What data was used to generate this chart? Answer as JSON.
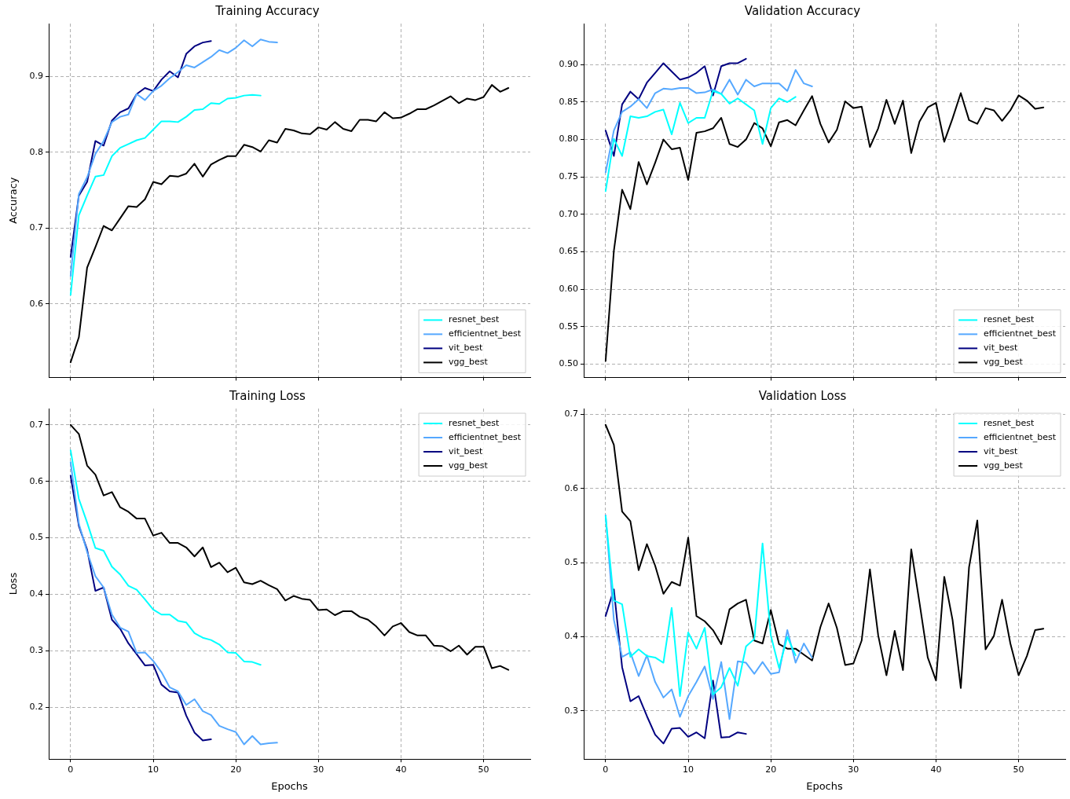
{
  "chart_data": [
    {
      "type": "line",
      "title": "Training Accuracy",
      "ylabel": "Accuracy",
      "x": [
        0,
        1,
        2,
        3,
        4,
        5,
        6,
        7,
        8,
        9,
        10,
        11,
        12,
        13,
        14,
        15,
        16,
        17,
        18,
        19,
        20,
        21,
        22,
        23,
        24,
        25,
        26,
        27,
        28,
        29,
        30,
        31,
        32,
        33,
        34,
        35,
        36,
        37,
        38,
        39,
        40,
        41,
        42,
        43,
        44,
        45,
        46,
        47,
        48,
        49,
        50,
        51,
        52,
        53
      ],
      "xlim": [
        -2.65,
        55.65
      ],
      "xticks": [
        0,
        10,
        20,
        30,
        40,
        50
      ],
      "ylim": [
        0.503,
        0.97
      ],
      "yticks": [
        0.6,
        0.7,
        0.8,
        0.9
      ],
      "grid": true,
      "legend": "bottom right",
      "marker": "none",
      "line_style": "solid",
      "tick_labels": "y",
      "series": [
        {
          "name": "resnet_best",
          "color": "#00ffff",
          "values": [
            0.612,
            0.717,
            0.743,
            0.768,
            0.77,
            0.795,
            0.806,
            0.811,
            0.816,
            0.819,
            0.83,
            0.841,
            0.841,
            0.84,
            0.847,
            0.856,
            0.857,
            0.865,
            0.864,
            0.871,
            0.872,
            0.875,
            0.876,
            0.875,
            null,
            null,
            null,
            null,
            null,
            null,
            null,
            null,
            null,
            null,
            null,
            null,
            null,
            null,
            null,
            null,
            null,
            null,
            null,
            null,
            null,
            null,
            null,
            null,
            null,
            null,
            null,
            null,
            null,
            null
          ]
        },
        {
          "name": "efficientnet_best",
          "color": "#55a8ff",
          "values": [
            0.637,
            0.745,
            0.767,
            0.798,
            0.815,
            0.84,
            0.847,
            0.85,
            0.877,
            0.869,
            0.881,
            0.888,
            0.898,
            0.906,
            0.915,
            0.912,
            0.919,
            0.926,
            0.935,
            0.931,
            0.938,
            0.948,
            0.94,
            0.949,
            0.946,
            0.945,
            null,
            null,
            null,
            null,
            null,
            null,
            null,
            null,
            null,
            null,
            null,
            null,
            null,
            null,
            null,
            null,
            null,
            null,
            null,
            null,
            null,
            null,
            null,
            null,
            null,
            null,
            null,
            null
          ]
        },
        {
          "name": "vit_best",
          "color": "#000080",
          "values": [
            0.662,
            0.743,
            0.761,
            0.815,
            0.809,
            0.842,
            0.853,
            0.858,
            0.877,
            0.885,
            0.881,
            0.896,
            0.907,
            0.899,
            0.93,
            0.94,
            0.945,
            0.947,
            null,
            null,
            null,
            null,
            null,
            null,
            null,
            null,
            null,
            null,
            null,
            null,
            null,
            null,
            null,
            null,
            null,
            null,
            null,
            null,
            null,
            null,
            null,
            null,
            null,
            null,
            null,
            null,
            null,
            null,
            null,
            null,
            null,
            null,
            null,
            null
          ]
        },
        {
          "name": "vgg_best",
          "color": "#000000",
          "values": [
            0.523,
            0.556,
            0.648,
            0.675,
            0.703,
            0.697,
            0.713,
            0.729,
            0.728,
            0.738,
            0.761,
            0.758,
            0.769,
            0.768,
            0.772,
            0.785,
            0.768,
            0.784,
            0.79,
            0.795,
            0.795,
            0.81,
            0.807,
            0.801,
            0.816,
            0.813,
            0.831,
            0.829,
            0.825,
            0.824,
            0.833,
            0.83,
            0.84,
            0.831,
            0.828,
            0.843,
            0.843,
            0.841,
            0.853,
            0.845,
            0.846,
            0.851,
            0.857,
            0.857,
            0.862,
            0.868,
            0.874,
            0.865,
            0.871,
            0.869,
            0.873,
            0.889,
            0.88,
            0.885
          ]
        }
      ]
    },
    {
      "type": "line",
      "title": "Validation Accuracy",
      "x": [
        0,
        1,
        2,
        3,
        4,
        5,
        6,
        7,
        8,
        9,
        10,
        11,
        12,
        13,
        14,
        15,
        16,
        17,
        18,
        19,
        20,
        21,
        22,
        23,
        24,
        25,
        26,
        27,
        28,
        29,
        30,
        31,
        32,
        33,
        34,
        35,
        36,
        37,
        38,
        39,
        40,
        41,
        42,
        43,
        44,
        45,
        46,
        47,
        48,
        49,
        50,
        51,
        52,
        53
      ],
      "xlim": [
        -2.65,
        55.65
      ],
      "xticks": [
        0,
        10,
        20,
        30,
        40,
        50
      ],
      "ylim": [
        0.482,
        0.955
      ],
      "yticks": [
        {
          "value": 0.5,
          "label": "0.50"
        },
        0.55,
        {
          "value": 0.6,
          "label": "0.60"
        },
        0.65,
        {
          "value": 0.7,
          "label": "0.70"
        },
        0.75,
        {
          "value": 0.8,
          "label": "0.80"
        },
        0.85,
        {
          "value": 0.9,
          "label": "0.90"
        }
      ],
      "grid": true,
      "legend": "bottom right",
      "marker": "none",
      "line_style": "solid",
      "tick_labels": "y",
      "series": [
        {
          "name": "resnet_best",
          "color": "#00ffff",
          "values": [
            0.731,
            0.801,
            0.778,
            0.831,
            0.829,
            0.831,
            0.837,
            0.84,
            0.807,
            0.849,
            0.822,
            0.829,
            0.829,
            0.865,
            0.861,
            0.848,
            0.855,
            0.847,
            0.839,
            0.794,
            0.842,
            0.855,
            0.85,
            0.857,
            null,
            null,
            null,
            null,
            null,
            null,
            null,
            null,
            null,
            null,
            null,
            null,
            null,
            null,
            null,
            null,
            null,
            null,
            null,
            null,
            null,
            null,
            null,
            null,
            null,
            null,
            null,
            null,
            null,
            null
          ]
        },
        {
          "name": "efficientnet_best",
          "color": "#55a8ff",
          "values": [
            0.756,
            0.812,
            0.837,
            0.844,
            0.854,
            0.842,
            0.862,
            0.868,
            0.867,
            0.869,
            0.869,
            0.862,
            0.863,
            0.867,
            0.861,
            0.88,
            0.86,
            0.88,
            0.871,
            0.875,
            0.875,
            0.875,
            0.865,
            0.893,
            0.875,
            0.871,
            null,
            null,
            null,
            null,
            null,
            null,
            null,
            null,
            null,
            null,
            null,
            null,
            null,
            null,
            null,
            null,
            null,
            null,
            null,
            null,
            null,
            null,
            null,
            null,
            null,
            null,
            null,
            null
          ]
        },
        {
          "name": "vit_best",
          "color": "#000080",
          "values": [
            0.812,
            0.778,
            0.847,
            0.864,
            0.854,
            0.876,
            0.889,
            0.902,
            0.891,
            0.88,
            0.883,
            0.889,
            0.898,
            0.859,
            0.898,
            0.902,
            0.902,
            0.908,
            null,
            null,
            null,
            null,
            null,
            null,
            null,
            null,
            null,
            null,
            null,
            null,
            null,
            null,
            null,
            null,
            null,
            null,
            null,
            null,
            null,
            null,
            null,
            null,
            null,
            null,
            null,
            null,
            null,
            null,
            null,
            null,
            null,
            null,
            null,
            null
          ]
        },
        {
          "name": "vgg_best",
          "color": "#000000",
          "values": [
            0.504,
            0.651,
            0.733,
            0.707,
            0.77,
            0.74,
            0.769,
            0.8,
            0.787,
            0.789,
            0.746,
            0.809,
            0.811,
            0.815,
            0.829,
            0.794,
            0.79,
            0.8,
            0.822,
            0.815,
            0.791,
            0.823,
            0.826,
            0.819,
            0.839,
            0.858,
            0.821,
            0.796,
            0.813,
            0.851,
            0.842,
            0.844,
            0.79,
            0.815,
            0.853,
            0.821,
            0.852,
            0.782,
            0.824,
            0.843,
            0.849,
            0.797,
            0.828,
            0.862,
            0.826,
            0.821,
            0.842,
            0.839,
            0.825,
            0.839,
            0.859,
            0.852,
            0.841,
            0.843
          ]
        }
      ]
    },
    {
      "type": "line",
      "title": "Training Loss",
      "xlabel": "Epochs",
      "ylabel": "Loss",
      "x": [
        0,
        1,
        2,
        3,
        4,
        5,
        6,
        7,
        8,
        9,
        10,
        11,
        12,
        13,
        14,
        15,
        16,
        17,
        18,
        19,
        20,
        21,
        22,
        23,
        24,
        25,
        26,
        27,
        28,
        29,
        30,
        31,
        32,
        33,
        34,
        35,
        36,
        37,
        38,
        39,
        40,
        41,
        42,
        43,
        44,
        45,
        46,
        47,
        48,
        49,
        50,
        51,
        52,
        53
      ],
      "xlim": [
        -2.65,
        55.65
      ],
      "xticks": [
        0,
        10,
        20,
        30,
        40,
        50
      ],
      "ylim": [
        0.108,
        0.729
      ],
      "yticks": [
        0.2,
        0.3,
        0.4,
        0.5,
        0.6,
        0.7
      ],
      "grid": true,
      "legend": "top right",
      "marker": "none",
      "line_style": "solid",
      "series": [
        {
          "name": "resnet_best",
          "color": "#00ffff",
          "values": [
            0.655,
            0.569,
            0.527,
            0.482,
            0.477,
            0.449,
            0.435,
            0.415,
            0.408,
            0.391,
            0.373,
            0.364,
            0.364,
            0.353,
            0.35,
            0.331,
            0.323,
            0.319,
            0.311,
            0.297,
            0.296,
            0.281,
            0.28,
            0.275,
            null,
            null,
            null,
            null,
            null,
            null,
            null,
            null,
            null,
            null,
            null,
            null,
            null,
            null,
            null,
            null,
            null,
            null,
            null,
            null,
            null,
            null,
            null,
            null,
            null,
            null,
            null,
            null,
            null,
            null
          ]
        },
        {
          "name": "efficientnet_best",
          "color": "#55a8ff",
          "values": [
            0.634,
            0.525,
            0.475,
            0.432,
            0.412,
            0.364,
            0.341,
            0.334,
            0.296,
            0.297,
            0.282,
            0.262,
            0.235,
            0.228,
            0.204,
            0.214,
            0.193,
            0.186,
            0.167,
            0.161,
            0.156,
            0.134,
            0.149,
            0.134,
            0.136,
            0.137,
            null,
            null,
            null,
            null,
            null,
            null,
            null,
            null,
            null,
            null,
            null,
            null,
            null,
            null,
            null,
            null,
            null,
            null,
            null,
            null,
            null,
            null,
            null,
            null,
            null,
            null,
            null,
            null
          ]
        },
        {
          "name": "vit_best",
          "color": "#000080",
          "values": [
            0.61,
            0.521,
            0.479,
            0.406,
            0.412,
            0.355,
            0.339,
            0.313,
            0.294,
            0.274,
            0.275,
            0.24,
            0.228,
            0.226,
            0.185,
            0.155,
            0.141,
            0.143,
            null,
            null,
            null,
            null,
            null,
            null,
            null,
            null,
            null,
            null,
            null,
            null,
            null,
            null,
            null,
            null,
            null,
            null,
            null,
            null,
            null,
            null,
            null,
            null,
            null,
            null,
            null,
            null,
            null,
            null,
            null,
            null,
            null,
            null,
            null,
            null
          ]
        },
        {
          "name": "vgg_best",
          "color": "#000000",
          "values": [
            0.7,
            0.684,
            0.628,
            0.612,
            0.575,
            0.581,
            0.554,
            0.546,
            0.534,
            0.534,
            0.504,
            0.509,
            0.491,
            0.491,
            0.483,
            0.467,
            0.483,
            0.448,
            0.456,
            0.439,
            0.447,
            0.421,
            0.418,
            0.424,
            0.416,
            0.409,
            0.389,
            0.397,
            0.392,
            0.39,
            0.372,
            0.373,
            0.363,
            0.37,
            0.37,
            0.36,
            0.355,
            0.343,
            0.327,
            0.343,
            0.349,
            0.333,
            0.327,
            0.327,
            0.309,
            0.308,
            0.299,
            0.309,
            0.293,
            0.307,
            0.307,
            0.269,
            0.273,
            0.266
          ]
        }
      ]
    },
    {
      "type": "line",
      "title": "Validation Loss",
      "xlabel": "Epochs",
      "x": [
        0,
        1,
        2,
        3,
        4,
        5,
        6,
        7,
        8,
        9,
        10,
        11,
        12,
        13,
        14,
        15,
        16,
        17,
        18,
        19,
        20,
        21,
        22,
        23,
        24,
        25,
        26,
        27,
        28,
        29,
        30,
        31,
        32,
        33,
        34,
        35,
        36,
        37,
        38,
        39,
        40,
        41,
        42,
        43,
        44,
        45,
        46,
        47,
        48,
        49,
        50,
        51,
        52,
        53
      ],
      "xlim": [
        -2.65,
        55.65
      ],
      "xticks": [
        0,
        10,
        20,
        30,
        40,
        50
      ],
      "ylim": [
        0.235,
        0.708
      ],
      "yticks": [
        0.3,
        0.4,
        0.5,
        0.6,
        0.7
      ],
      "grid": true,
      "legend": "top right",
      "marker": "none",
      "line_style": "solid",
      "series": [
        {
          "name": "resnet_best",
          "color": "#00ffff",
          "values": [
            0.563,
            0.449,
            0.444,
            0.373,
            0.383,
            0.374,
            0.372,
            0.365,
            0.439,
            0.32,
            0.406,
            0.384,
            0.412,
            0.322,
            0.332,
            0.358,
            0.334,
            0.387,
            0.397,
            0.526,
            0.402,
            0.358,
            0.4,
            0.375,
            null,
            null,
            null,
            null,
            null,
            null,
            null,
            null,
            null,
            null,
            null,
            null,
            null,
            null,
            null,
            null,
            null,
            null,
            null,
            null,
            null,
            null,
            null,
            null,
            null,
            null,
            null,
            null,
            null,
            null
          ]
        },
        {
          "name": "efficientnet_best",
          "color": "#55a8ff",
          "values": [
            0.564,
            0.423,
            0.373,
            0.379,
            0.347,
            0.375,
            0.339,
            0.318,
            0.329,
            0.292,
            0.32,
            0.339,
            0.36,
            0.316,
            0.366,
            0.289,
            0.367,
            0.365,
            0.35,
            0.366,
            0.35,
            0.352,
            0.409,
            0.365,
            0.391,
            0.372,
            null,
            null,
            null,
            null,
            null,
            null,
            null,
            null,
            null,
            null,
            null,
            null,
            null,
            null,
            null,
            null,
            null,
            null,
            null,
            null,
            null,
            null,
            null,
            null,
            null,
            null,
            null,
            null
          ]
        },
        {
          "name": "vit_best",
          "color": "#000080",
          "values": [
            0.428,
            0.464,
            0.359,
            0.313,
            0.32,
            0.293,
            0.268,
            0.256,
            0.276,
            0.277,
            0.265,
            0.271,
            0.263,
            0.341,
            0.264,
            0.265,
            0.271,
            0.269,
            null,
            null,
            null,
            null,
            null,
            null,
            null,
            null,
            null,
            null,
            null,
            null,
            null,
            null,
            null,
            null,
            null,
            null,
            null,
            null,
            null,
            null,
            null,
            null,
            null,
            null,
            null,
            null,
            null,
            null,
            null,
            null,
            null,
            null,
            null,
            null
          ]
        },
        {
          "name": "vgg_best",
          "color": "#000000",
          "values": [
            0.686,
            0.659,
            0.569,
            0.556,
            0.49,
            0.525,
            0.496,
            0.458,
            0.474,
            0.469,
            0.534,
            0.428,
            0.421,
            0.409,
            0.39,
            0.437,
            0.445,
            0.45,
            0.395,
            0.391,
            0.436,
            0.39,
            0.384,
            0.384,
            0.376,
            0.368,
            0.413,
            0.445,
            0.412,
            0.362,
            0.364,
            0.395,
            0.491,
            0.402,
            0.348,
            0.408,
            0.355,
            0.518,
            0.446,
            0.372,
            0.341,
            0.481,
            0.423,
            0.331,
            0.494,
            0.557,
            0.383,
            0.401,
            0.45,
            0.391,
            0.348,
            0.374,
            0.409,
            0.411
          ]
        }
      ]
    }
  ]
}
